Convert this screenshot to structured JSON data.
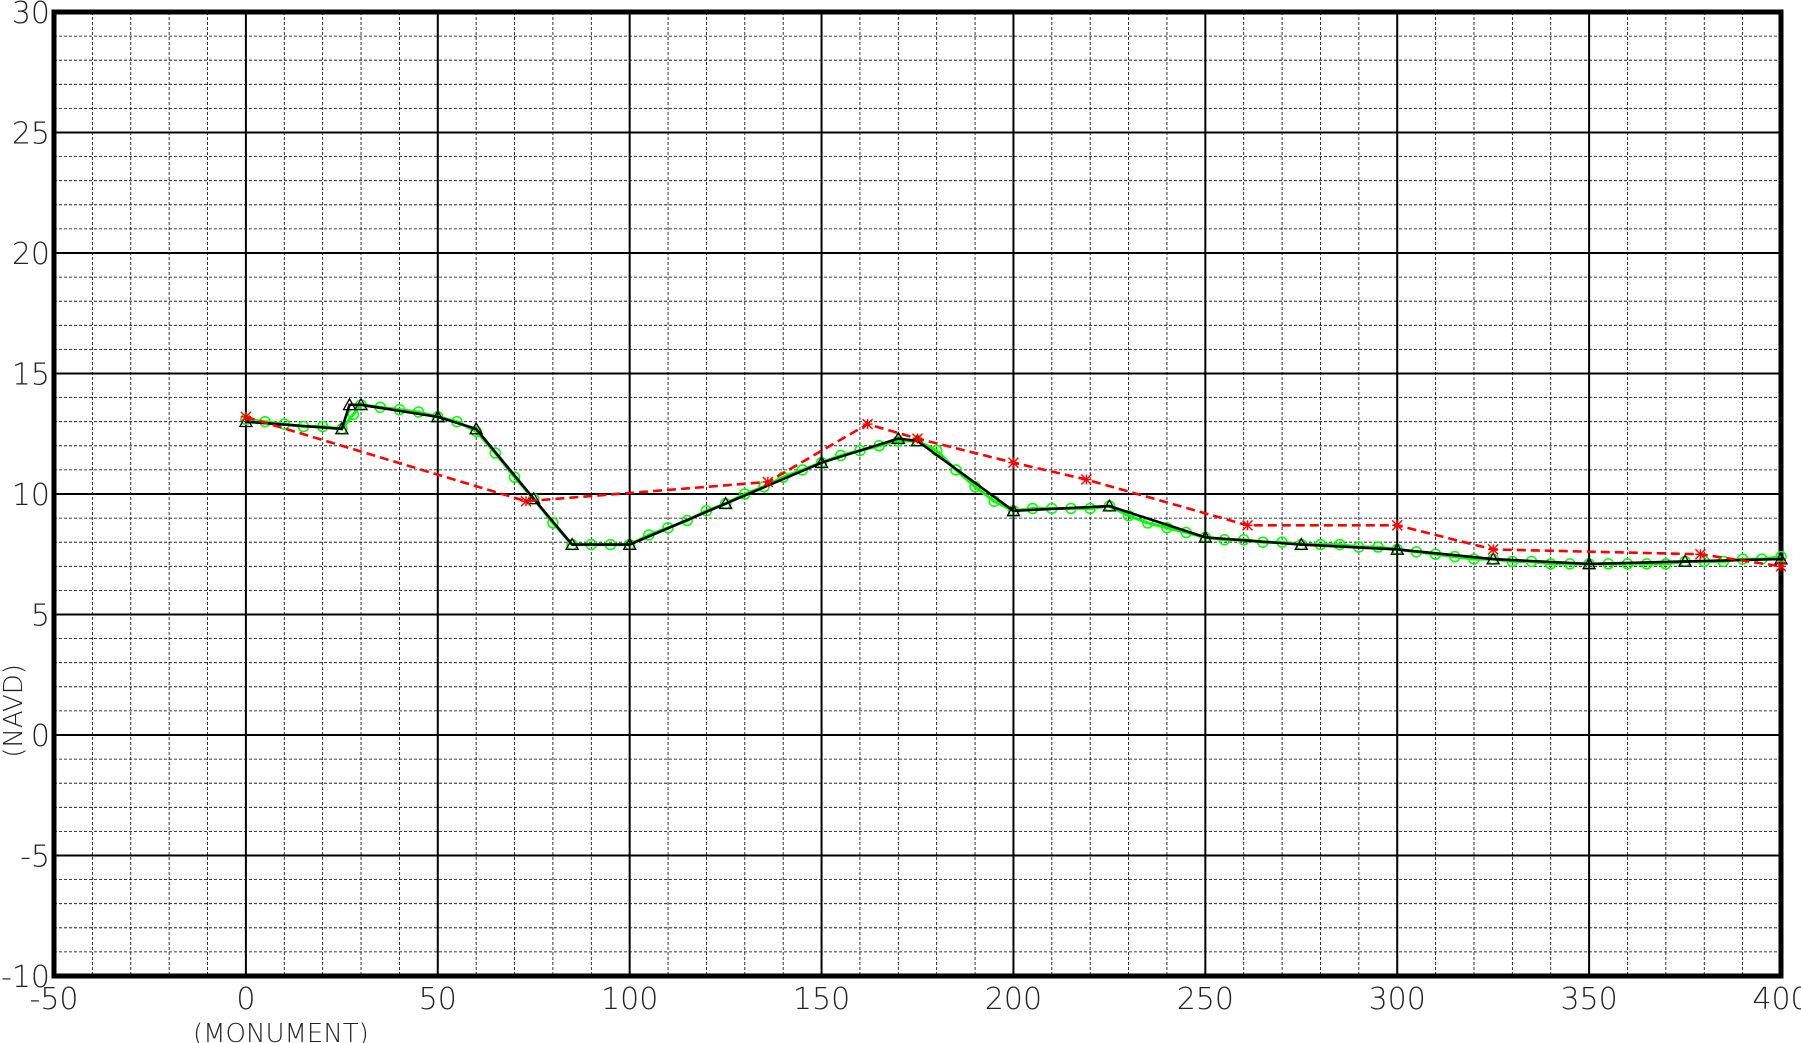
{
  "chart_data": {
    "type": "line",
    "title": "",
    "xlabel": "(MONUMENT)",
    "ylabel": "(NAVD)",
    "xlim": [
      -50,
      400
    ],
    "ylim": [
      -10,
      30
    ],
    "x_ticks": [
      -50,
      0,
      50,
      100,
      150,
      200,
      250,
      300,
      350,
      400
    ],
    "y_ticks": [
      30,
      25,
      20,
      15,
      10,
      5,
      0,
      -5,
      -10
    ],
    "x_tick_labels": [
      "-50",
      "0",
      "50",
      "100",
      "150",
      "200",
      "250",
      "300",
      "350",
      "400"
    ],
    "y_tick_labels": [
      "30",
      "25",
      "20",
      "15",
      "10",
      "5",
      "0",
      "-5",
      "-10"
    ],
    "grid": true,
    "legend": "none",
    "series": [
      {
        "color": "#000000",
        "style": "solid",
        "marker": "triangle",
        "x": [
          0,
          25,
          27,
          30,
          50,
          60,
          75,
          85,
          100,
          125,
          150,
          170,
          175,
          200,
          225,
          250,
          275,
          300,
          325,
          350,
          375,
          400
        ],
        "y": [
          13.0,
          12.7,
          13.7,
          13.7,
          13.2,
          12.7,
          9.8,
          7.9,
          7.9,
          9.6,
          11.3,
          12.3,
          12.2,
          9.3,
          9.5,
          8.2,
          7.9,
          7.7,
          7.3,
          7.1,
          7.2,
          7.3
        ]
      },
      {
        "color": "#00ff00",
        "style": "solid",
        "marker": "circle",
        "x": [
          0,
          5,
          10,
          15,
          20,
          25,
          28,
          30,
          35,
          40,
          45,
          50,
          55,
          60,
          65,
          70,
          75,
          80,
          85,
          90,
          95,
          100,
          105,
          110,
          115,
          120,
          125,
          130,
          135,
          140,
          145,
          150,
          155,
          160,
          165,
          170,
          175,
          180,
          185,
          190,
          195,
          200,
          205,
          210,
          215,
          220,
          225,
          230,
          235,
          240,
          245,
          250,
          255,
          260,
          265,
          270,
          275,
          280,
          285,
          290,
          295,
          300,
          305,
          310,
          315,
          320,
          325,
          330,
          335,
          340,
          345,
          350,
          355,
          360,
          365,
          370,
          375,
          380,
          385,
          390,
          395,
          400
        ],
        "y": [
          13.1,
          13.0,
          12.9,
          12.8,
          12.8,
          12.7,
          13.3,
          13.7,
          13.6,
          13.5,
          13.4,
          13.2,
          13.0,
          12.6,
          11.7,
          10.7,
          9.8,
          8.8,
          7.9,
          7.9,
          7.9,
          7.9,
          8.3,
          8.6,
          8.9,
          9.3,
          9.6,
          10.0,
          10.3,
          10.7,
          11.0,
          11.3,
          11.6,
          11.8,
          12.0,
          12.2,
          12.2,
          11.8,
          11.0,
          10.3,
          9.7,
          9.3,
          9.4,
          9.4,
          9.4,
          9.4,
          9.5,
          9.1,
          8.8,
          8.6,
          8.4,
          8.2,
          8.1,
          8.1,
          8.0,
          8.0,
          7.9,
          7.9,
          7.9,
          7.8,
          7.8,
          7.7,
          7.6,
          7.5,
          7.4,
          7.3,
          7.3,
          7.2,
          7.2,
          7.1,
          7.1,
          7.1,
          7.1,
          7.1,
          7.1,
          7.1,
          7.2,
          7.2,
          7.2,
          7.3,
          7.3,
          7.4
        ]
      },
      {
        "color": "#ff0000",
        "style": "dashed",
        "marker": "star",
        "x": [
          0,
          73,
          136,
          162,
          175,
          200,
          219,
          261,
          300,
          325,
          379,
          400
        ],
        "y": [
          13.2,
          9.7,
          10.5,
          12.9,
          12.3,
          11.3,
          10.6,
          8.7,
          8.7,
          7.7,
          7.5,
          7.0
        ]
      }
    ]
  }
}
